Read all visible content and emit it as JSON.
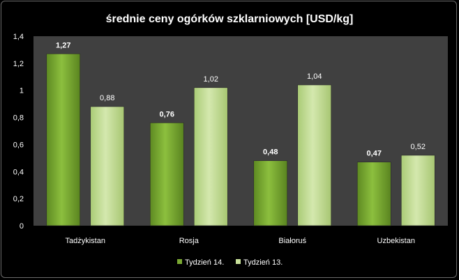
{
  "chart_data": {
    "type": "bar",
    "title": "średnie ceny ogórków szklarniowych [USD/kg]",
    "categories": [
      "Tadżykistan",
      "Rosja",
      "Białoruś",
      "Uzbekistan"
    ],
    "series": [
      {
        "name": "Tydzień 14.",
        "values": [
          1.27,
          0.76,
          0.48,
          0.47
        ],
        "labels": [
          "1,27",
          "0,76",
          "0,48",
          "0,47"
        ],
        "color": "#7aa832",
        "label_bold": true
      },
      {
        "name": "Tydzień 13.",
        "values": [
          0.88,
          1.02,
          1.04,
          0.52
        ],
        "labels": [
          "0,88",
          "1,02",
          "1,04",
          "0,52"
        ],
        "color": "#c8e09a",
        "label_bold": false
      }
    ],
    "ylim": [
      0,
      1.4
    ],
    "yticks": [
      0,
      0.2,
      0.4,
      0.6,
      0.8,
      1,
      1.2,
      1.4
    ],
    "ytick_labels": [
      "0",
      "0,2",
      "0,4",
      "0,6",
      "0,8",
      "1",
      "1,2",
      "1,4"
    ],
    "xlabel": "",
    "ylabel": "",
    "grid": false,
    "legend": "bottom",
    "plot_background": "#404040"
  }
}
